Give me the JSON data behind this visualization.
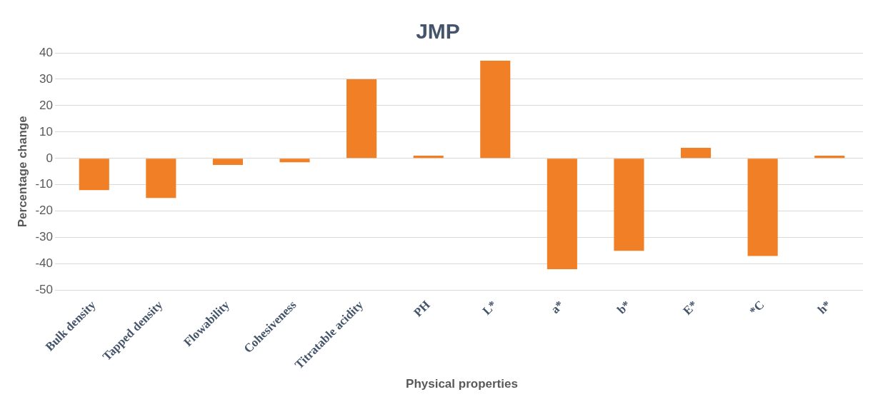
{
  "chart_data": {
    "type": "bar",
    "title": "JMP",
    "xlabel": "Physical properties",
    "ylabel": "Percentage change",
    "categories": [
      "Bulk density",
      "Tapped density",
      "Flowability",
      "Cohesiveness",
      "Titratable acidity",
      "PH",
      "L*",
      "a*",
      "b*",
      "E*",
      "*C",
      "h*"
    ],
    "values": [
      -12,
      -15,
      -2.5,
      -1.5,
      30,
      1,
      37,
      -42,
      -35,
      4,
      -37,
      1
    ],
    "color": "#f07f26",
    "ylim": [
      -50,
      40
    ],
    "yticks": [
      -50,
      -40,
      -30,
      -20,
      -10,
      0,
      10,
      20,
      30,
      40
    ],
    "grid": "y",
    "legend": false
  }
}
